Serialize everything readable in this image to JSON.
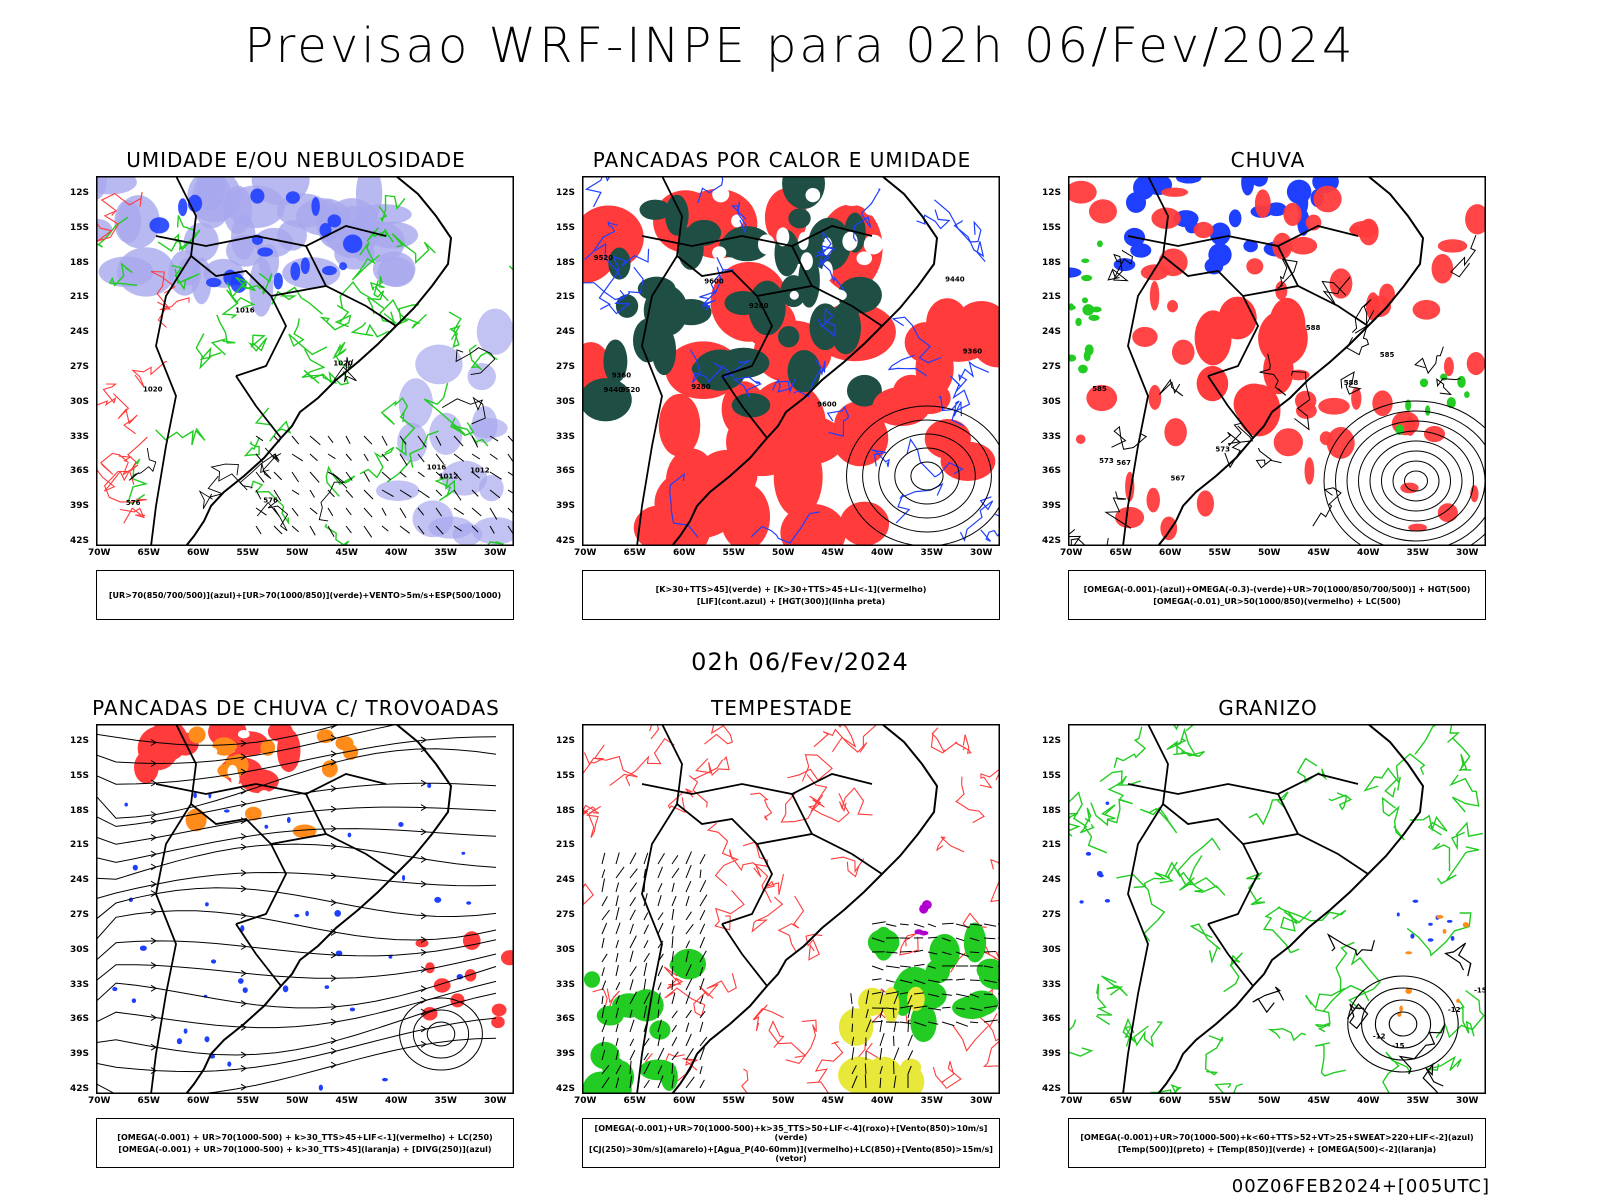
{
  "header": {
    "title": "Previsao WRF-INPE  para 02h 06/Fev/2024",
    "subtitle": "02h 06/Fev/2024",
    "footer": "00Z06FEB2024+[005UTC]"
  },
  "axes": {
    "lat_labels": [
      "12S",
      "15S",
      "18S",
      "21S",
      "24S",
      "27S",
      "30S",
      "33S",
      "36S",
      "39S",
      "42S"
    ],
    "lon_labels": [
      "70W",
      "65W",
      "60W",
      "55W",
      "50W",
      "45W",
      "40W",
      "35W",
      "30W"
    ]
  },
  "colors": {
    "blue": "#1f3fff",
    "green": "#22cc22",
    "red": "#ff3b3b",
    "darkgreen": "#1f4f44",
    "lavender": "#a8a8ee",
    "orange": "#ff8c1a",
    "yellow": "#e8e83a",
    "purple": "#b000d0"
  },
  "panels": [
    {
      "title": "UMIDADE E/OU NEBULOSIDADE",
      "legend": [
        "[UR>70(850/700/500)](azul)+[UR>70(1000/850)](verde)+VENTO>5m/s+ESP(500/1000)"
      ],
      "contour_labels": [
        "1012",
        "1016",
        "1020",
        "576"
      ]
    },
    {
      "title": "PANCADAS POR CALOR E UMIDADE",
      "legend": [
        "[K>30+TTS>45](verde)  +  [K>30+TTS>45+LI<-1](vermelho)",
        "[LIF](cont.azul)  +  [HGT(300)](linha preta)"
      ],
      "contour_labels": [
        "9600",
        "9520",
        "9440",
        "9360",
        "9280"
      ]
    },
    {
      "title": "CHUVA",
      "legend": [
        "[OMEGA(-0.001)-(azul)+OMEGA(-0.3)-(verde)+UR>70(1000/850/700/500)]  +  HGT(500)",
        "[OMEGA(-0.01)_UR>50(1000/850)(vermelho)  +  LC(500)"
      ],
      "contour_labels": [
        "588",
        "585",
        "573",
        "567"
      ]
    },
    {
      "title": "PANCADAS DE CHUVA C/ TROVOADAS",
      "legend": [
        "[OMEGA(-0.001)  +  UR>70(1000-500)  +  k>30_TTS>45+LIF<-1](vermelho)  +  LC(250)",
        "[OMEGA(-0.001)  +  UR>70(1000-500)  +  k>30_TTS>45](laranja)  +  [DIVG(250)](azul)"
      ],
      "contour_labels": []
    },
    {
      "title": "TEMPESTADE",
      "legend": [
        "[OMEGA(-0.001)+UR>70(1000-500)+k>35_TTS>50+LIF<-4](roxo)+[Vento(850)>10m/s](verde)",
        "[CJ(250)>30m/s](amarelo)+[Agua_P(40-60mm)](vermelho)+LC(850)+[Vento(850)>15m/s](vetor)"
      ],
      "contour_labels": []
    },
    {
      "title": "GRANIZO",
      "legend": [
        "[OMEGA(-0.001)+UR>70(1000-500)+k<60+TTS>52+VT>25+SWEAT>220+LIF<-2](azul)",
        "[Temp(500)](preto)  +  [Temp(850)](verde)  +  [OMEGA(500)<-2](laranja)"
      ],
      "contour_labels": [
        "-12",
        "-15"
      ]
    }
  ]
}
